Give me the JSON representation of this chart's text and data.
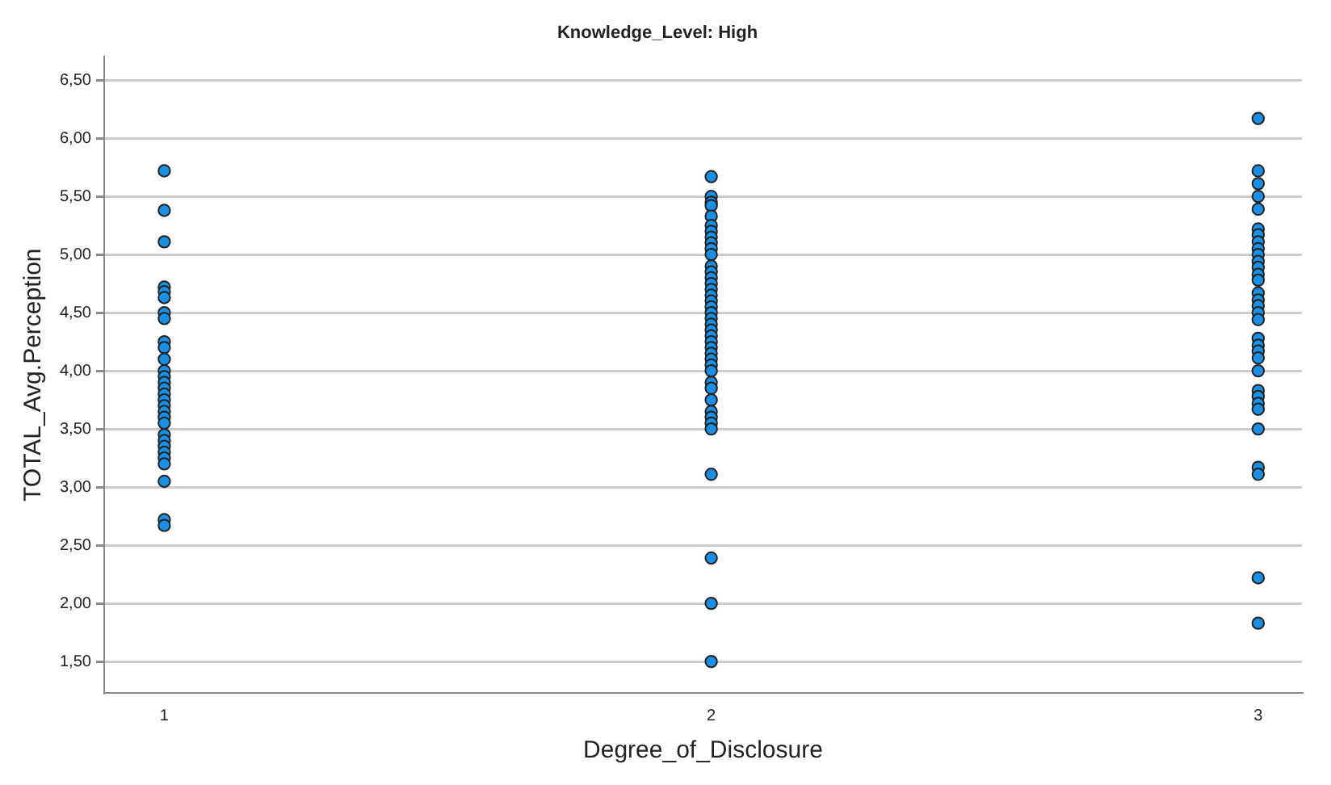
{
  "chart_data": {
    "type": "scatter",
    "title": "Knowledge_Level: High",
    "xlabel": "Degree_of_Disclosure",
    "ylabel": "TOTAL_Avg.Perception",
    "series": [
      {
        "color": "#1a8fe3",
        "x": [
          1,
          1,
          1,
          1,
          1,
          1,
          1,
          1,
          1,
          1,
          1,
          1,
          1,
          1,
          1,
          1,
          1,
          1,
          1,
          1,
          1,
          1,
          1,
          1,
          1,
          1,
          1,
          1,
          1,
          1,
          2,
          2,
          2,
          2,
          2,
          2,
          2,
          2,
          2,
          2,
          2,
          2,
          2,
          2,
          2,
          2,
          2,
          2,
          2,
          2,
          2,
          2,
          2,
          2,
          2,
          2,
          2,
          2,
          2,
          2,
          2,
          2,
          2,
          2,
          2,
          2,
          2,
          2,
          2,
          2,
          2,
          3,
          3,
          3,
          3,
          3,
          3,
          3,
          3,
          3,
          3,
          3,
          3,
          3,
          3,
          3,
          3,
          3,
          3,
          3,
          3,
          3,
          3,
          3,
          3,
          3,
          3,
          3,
          3,
          3,
          3,
          3,
          3,
          3
        ],
        "values": [
          5.72,
          5.38,
          5.11,
          4.72,
          4.68,
          4.63,
          4.5,
          4.45,
          4.25,
          4.2,
          4.1,
          4.0,
          3.95,
          3.9,
          3.85,
          3.8,
          3.75,
          3.7,
          3.65,
          3.6,
          3.55,
          3.45,
          3.4,
          3.35,
          3.3,
          3.25,
          3.2,
          3.05,
          2.72,
          2.67,
          5.67,
          5.5,
          5.45,
          5.42,
          5.33,
          5.25,
          5.2,
          5.15,
          5.1,
          5.05,
          5.0,
          4.9,
          4.85,
          4.8,
          4.75,
          4.7,
          4.65,
          4.6,
          4.55,
          4.5,
          4.45,
          4.4,
          4.35,
          4.3,
          4.25,
          4.2,
          4.15,
          4.1,
          4.05,
          4.0,
          3.9,
          3.85,
          3.75,
          3.65,
          3.6,
          3.55,
          3.5,
          3.11,
          2.39,
          2.0,
          1.5,
          6.17,
          5.72,
          5.61,
          5.5,
          5.39,
          5.22,
          5.17,
          5.11,
          5.05,
          5.0,
          4.94,
          4.89,
          4.83,
          4.78,
          4.67,
          4.61,
          4.56,
          4.5,
          4.44,
          4.28,
          4.22,
          4.17,
          4.11,
          4.0,
          3.83,
          3.78,
          3.72,
          3.67,
          3.5,
          3.17,
          3.11,
          2.22,
          1.83
        ]
      }
    ],
    "xlim": [
      0.89,
      3.08
    ],
    "xticks": [
      1,
      2,
      3
    ],
    "ylim": [
      1.23,
      6.7
    ],
    "yticks": [
      {
        "value": 1.5,
        "label": "1,50"
      },
      {
        "value": 2,
        "label": "2,00"
      },
      {
        "value": 2.5,
        "label": "2,50"
      },
      {
        "value": 3,
        "label": "3,00"
      },
      {
        "value": 3.5,
        "label": "3,50"
      },
      {
        "value": 4,
        "label": "4,00"
      },
      {
        "value": 4.5,
        "label": "4,50"
      },
      {
        "value": 5,
        "label": "5,00"
      },
      {
        "value": 5.5,
        "label": "5,50"
      },
      {
        "value": 6,
        "label": "6,00"
      },
      {
        "value": 6.5,
        "label": "6,50"
      }
    ],
    "grid": "y",
    "marker": "circle",
    "legend": false
  }
}
